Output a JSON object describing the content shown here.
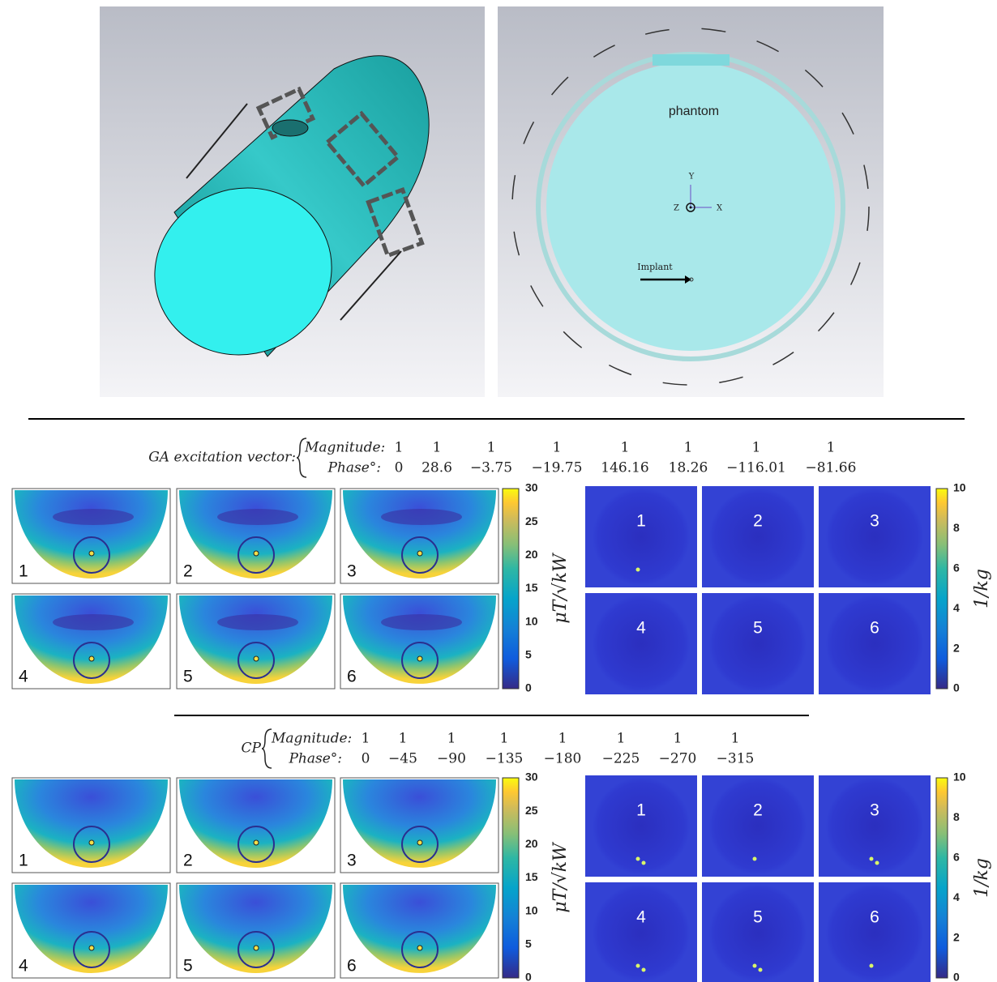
{
  "geometry": {
    "label": "phantom",
    "axis_y": "Y",
    "axis_x": "X",
    "axis_z": "Z",
    "implant": "Implant"
  },
  "sections": [
    {
      "label": "GA excitation vector:",
      "magnitude_label": "Magnitude:",
      "phase_label": "Phase°:",
      "magnitudes": [
        "1",
        "1",
        "1",
        "1",
        "1",
        "1",
        "1",
        "1"
      ],
      "phases": [
        "0",
        "28.6",
        "−3.75",
        "−19.75",
        "146.16",
        "18.26",
        "−116.01",
        "−81.66"
      ],
      "b1_panels": [
        "1",
        "2",
        "3",
        "4",
        "5",
        "6"
      ],
      "b1_colorbar": {
        "ticks": [
          "0",
          "5",
          "10",
          "15",
          "20",
          "25",
          "30"
        ],
        "unit": "μT/√kW"
      },
      "sar_panels": [
        "1",
        "2",
        "3",
        "4",
        "5",
        "6"
      ],
      "sar_colorbar": {
        "ticks": [
          "0",
          "2",
          "4",
          "6",
          "8",
          "10"
        ],
        "unit": "1/kg"
      }
    },
    {
      "label": "CP",
      "magnitude_label": "Magnitude:",
      "phase_label": "Phase°:",
      "magnitudes": [
        "1",
        "1",
        "1",
        "1",
        "1",
        "1",
        "1",
        "1"
      ],
      "phases": [
        "0",
        "−45",
        "−90",
        "−135",
        "−180",
        "−225",
        "−270",
        "−315"
      ],
      "b1_panels": [
        "1",
        "2",
        "3",
        "4",
        "5",
        "6"
      ],
      "b1_colorbar": {
        "ticks": [
          "0",
          "5",
          "10",
          "15",
          "20",
          "25",
          "30"
        ],
        "unit": "μT/√kW"
      },
      "sar_panels": [
        "1",
        "2",
        "3",
        "4",
        "5",
        "6"
      ],
      "sar_colorbar": {
        "ticks": [
          "0",
          "2",
          "4",
          "6",
          "8",
          "10"
        ],
        "unit": "1/kg"
      }
    }
  ]
}
